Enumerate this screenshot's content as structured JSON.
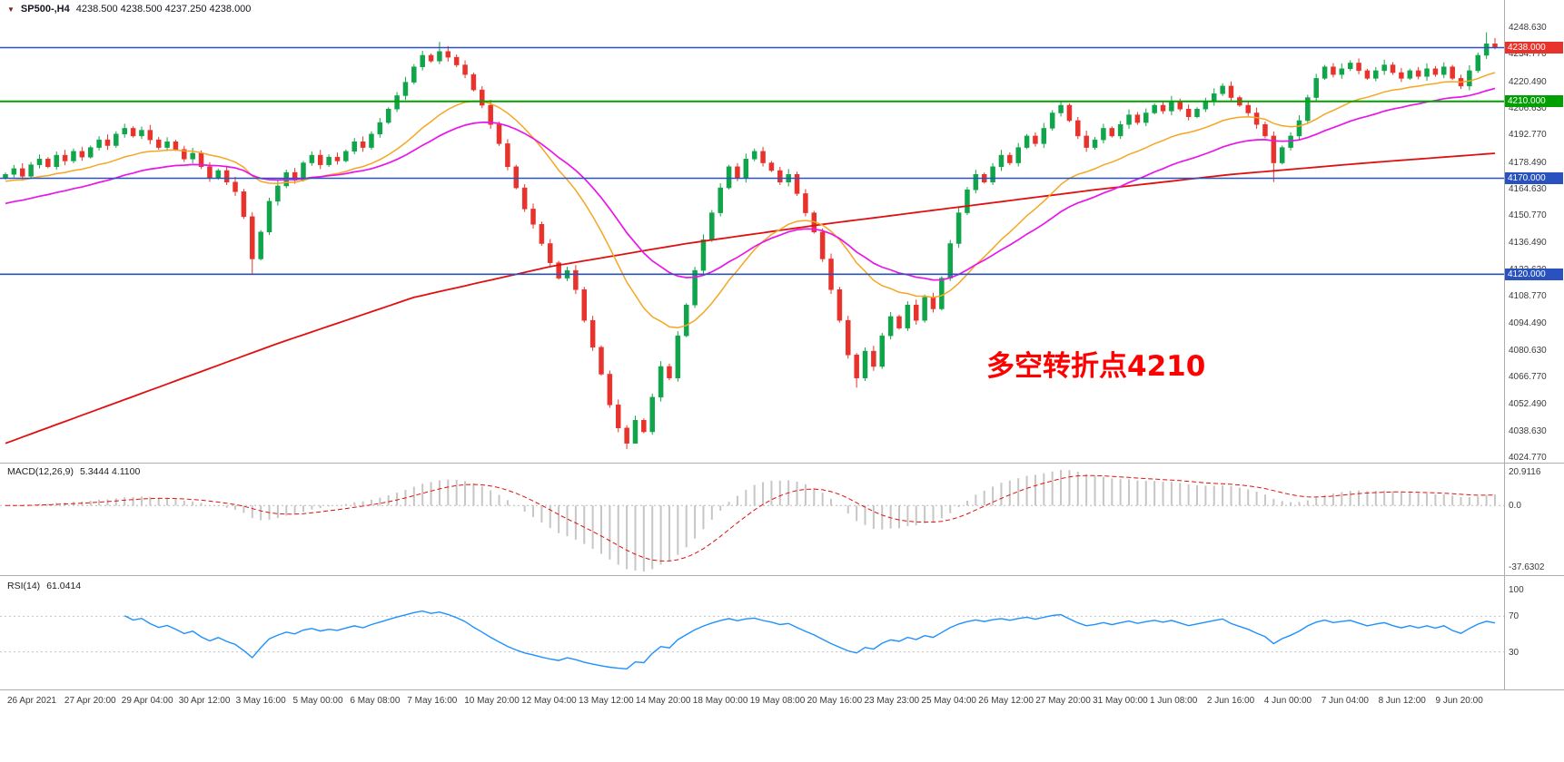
{
  "window": {
    "symbol_period": "SP500-,H4",
    "ohlc_label": "4238.500 4238.500 4237.250 4238.000"
  },
  "annotation": {
    "text": "多空转折点4210",
    "color": "#FF0000"
  },
  "price_axis": {
    "ticks": [
      "4248.630",
      "4234.770",
      "4220.490",
      "4206.630",
      "4192.770",
      "4178.490",
      "4164.630",
      "4150.770",
      "4136.490",
      "4122.630",
      "4108.770",
      "4094.490",
      "4080.630",
      "4066.770",
      "4052.490",
      "4038.630",
      "4024.770"
    ]
  },
  "levels": [
    {
      "price": 4238.0,
      "label": "4238.000",
      "line_color": "#2A52BE",
      "label_bg": "#E8332C",
      "width": 1.6
    },
    {
      "price": 4210.0,
      "label": "4210.000",
      "line_color": "#00A000",
      "label_bg": "#00A000",
      "width": 2.0
    },
    {
      "price": 4170.0,
      "label": "4170.000",
      "line_color": "#2A52BE",
      "label_bg": "#2A52BE",
      "width": 1.6
    },
    {
      "price": 4120.0,
      "label": "4120.000",
      "line_color": "#2A52BE",
      "label_bg": "#2A52BE",
      "width": 1.6
    }
  ],
  "macd_panel": {
    "name": "MACD(12,26,9)",
    "values": "5.3444 4.1100",
    "axis": [
      "20.9116",
      "0.0",
      "-37.6302"
    ]
  },
  "rsi_panel": {
    "name": "RSI(14)",
    "value": "61.0414",
    "axis": [
      "100",
      "70",
      "30"
    ]
  },
  "time_axis": [
    "26 Apr 2021",
    "27 Apr 20:00",
    "29 Apr 04:00",
    "30 Apr 12:00",
    "3 May 16:00",
    "5 May 00:00",
    "6 May 08:00",
    "7 May 16:00",
    "10 May 20:00",
    "12 May 04:00",
    "13 May 12:00",
    "14 May 20:00",
    "18 May 00:00",
    "19 May 08:00",
    "20 May 16:00",
    "23 May 23:00",
    "25 May 04:00",
    "26 May 12:00",
    "27 May 20:00",
    "31 May 00:00",
    "1 Jun 08:00",
    "2 Jun 16:00",
    "4 Jun 00:00",
    "7 Jun 04:00",
    "8 Jun 12:00",
    "9 Jun 20:00"
  ],
  "chart_data": [
    {
      "type": "candlestick",
      "title": "SP500-,H4",
      "ylim": [
        4024.77,
        4248.63
      ],
      "open_first": 4170,
      "closes": [
        4172,
        4175,
        4171,
        4177,
        4180,
        4176,
        4182,
        4179,
        4184,
        4181,
        4186,
        4190,
        4187,
        4193,
        4196,
        4192,
        4195,
        4190,
        4186,
        4189,
        4185,
        4180,
        4183,
        4176,
        4170,
        4174,
        4168,
        4163,
        4150,
        4128,
        4142,
        4158,
        4166,
        4173,
        4169,
        4178,
        4182,
        4177,
        4181,
        4179,
        4184,
        4189,
        4186,
        4193,
        4199,
        4206,
        4213,
        4220,
        4228,
        4234,
        4231,
        4236,
        4233,
        4229,
        4224,
        4216,
        4208,
        4198,
        4188,
        4176,
        4165,
        4154,
        4146,
        4136,
        4126,
        4118,
        4122,
        4112,
        4096,
        4082,
        4068,
        4052,
        4040,
        4032,
        4044,
        4038,
        4056,
        4072,
        4066,
        4088,
        4104,
        4122,
        4138,
        4152,
        4165,
        4176,
        4170,
        4180,
        4184,
        4178,
        4174,
        4168,
        4172,
        4162,
        4152,
        4142,
        4128,
        4112,
        4096,
        4078,
        4066,
        4080,
        4072,
        4088,
        4098,
        4092,
        4104,
        4096,
        4108,
        4102,
        4118,
        4136,
        4152,
        4164,
        4172,
        4168,
        4176,
        4182,
        4178,
        4186,
        4192,
        4188,
        4196,
        4204,
        4208,
        4200,
        4192,
        4186,
        4190,
        4196,
        4192,
        4198,
        4203,
        4199,
        4204,
        4208,
        4205,
        4210,
        4206,
        4202,
        4206,
        4210,
        4214,
        4218,
        4212,
        4208,
        4204,
        4198,
        4192,
        4178,
        4186,
        4192,
        4200,
        4212,
        4222,
        4228,
        4224,
        4227,
        4230,
        4226,
        4222,
        4226,
        4229,
        4225,
        4222,
        4226,
        4223,
        4227,
        4224,
        4228,
        4222,
        4218,
        4226,
        4234,
        4240,
        4238
      ],
      "wick_overrides": {
        "29": {
          "low": 4120
        },
        "51": {
          "high": 4241
        },
        "73": {
          "low": 4029
        },
        "74": {
          "low": 4036
        },
        "100": {
          "low": 4061
        },
        "149": {
          "low": 4168
        },
        "174": {
          "high": 4246
        },
        "175": {
          "high": 4243
        }
      },
      "ma": {
        "red": {
          "style": "waypoints",
          "color": "#E01010",
          "points": [
            [
              0,
              4032
            ],
            [
              16,
              4058
            ],
            [
              32,
              4084
            ],
            [
              48,
              4108
            ],
            [
              64,
              4124
            ],
            [
              80,
              4136
            ],
            [
              96,
              4146
            ],
            [
              112,
              4155
            ],
            [
              128,
              4164
            ],
            [
              144,
              4172
            ],
            [
              160,
              4178
            ],
            [
              175,
              4183
            ]
          ]
        },
        "magenta": {
          "style": "ema",
          "period": 36,
          "seed": 4156,
          "color": "#E816E8"
        },
        "orange": {
          "style": "ema",
          "period": 20,
          "seed": 4168,
          "color": "#F5A623"
        }
      },
      "colors": {
        "up": "#10A54A",
        "down": "#E8332C"
      }
    },
    {
      "type": "bar",
      "name": "MACD(12,26,9)",
      "source": "derived from closes: histogram = EMA12-EMA26, signal = EMA9 of histogram",
      "current_values": [
        5.3444,
        4.11
      ],
      "y_ticks": [
        20.9116,
        0.0,
        -37.6302
      ],
      "histogram_color": "#C6C6C6",
      "signal_color": "#E01010"
    },
    {
      "type": "line",
      "name": "RSI(14)",
      "source": "derived from closes, period 14",
      "current_value": 61.0414,
      "y_ticks": [
        100,
        70,
        30
      ],
      "levels": [
        70,
        30
      ],
      "line_color": "#1E90FF"
    }
  ]
}
